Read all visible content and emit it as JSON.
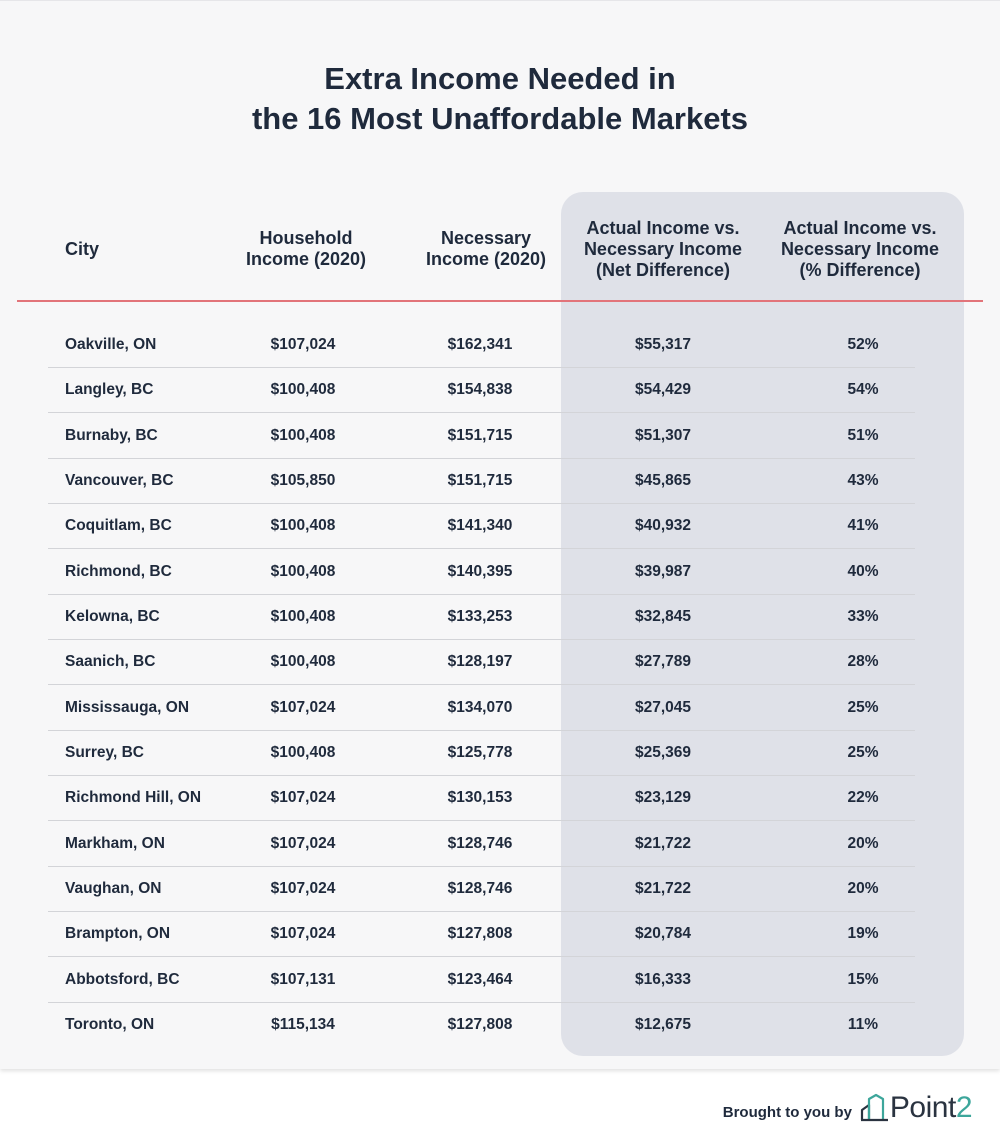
{
  "chart_data": {
    "type": "table",
    "title_line1": "Extra Income Needed in",
    "title_line2": "the 16 Most Unaffordable Markets",
    "columns": [
      {
        "lines": [
          "City"
        ]
      },
      {
        "lines": [
          "Household",
          "Income (2020)"
        ]
      },
      {
        "lines": [
          "Necessary",
          "Income (2020)"
        ]
      },
      {
        "lines": [
          "Actual Income vs.",
          "Necessary Income",
          "(Net Difference)"
        ]
      },
      {
        "lines": [
          "Actual Income vs.",
          "Necessary Income",
          "(% Difference)"
        ]
      }
    ],
    "rows": [
      {
        "city": "Oakville, ON",
        "household": "$107,024",
        "necessary": "$162,341",
        "net": "$55,317",
        "pct": "52%"
      },
      {
        "city": "Langley, BC",
        "household": "$100,408",
        "necessary": "$154,838",
        "net": "$54,429",
        "pct": "54%"
      },
      {
        "city": "Burnaby, BC",
        "household": "$100,408",
        "necessary": "$151,715",
        "net": "$51,307",
        "pct": "51%"
      },
      {
        "city": "Vancouver, BC",
        "household": "$105,850",
        "necessary": "$151,715",
        "net": "$45,865",
        "pct": "43%"
      },
      {
        "city": "Coquitlam, BC",
        "household": "$100,408",
        "necessary": "$141,340",
        "net": "$40,932",
        "pct": "41%"
      },
      {
        "city": "Richmond, BC",
        "household": "$100,408",
        "necessary": "$140,395",
        "net": "$39,987",
        "pct": "40%"
      },
      {
        "city": "Kelowna, BC",
        "household": "$100,408",
        "necessary": "$133,253",
        "net": "$32,845",
        "pct": "33%"
      },
      {
        "city": "Saanich, BC",
        "household": "$100,408",
        "necessary": "$128,197",
        "net": "$27,789",
        "pct": "28%"
      },
      {
        "city": "Mississauga, ON",
        "household": "$107,024",
        "necessary": "$134,070",
        "net": "$27,045",
        "pct": "25%"
      },
      {
        "city": "Surrey, BC",
        "household": "$100,408",
        "necessary": "$125,778",
        "net": "$25,369",
        "pct": "25%"
      },
      {
        "city": "Richmond Hill, ON",
        "household": "$107,024",
        "necessary": "$130,153",
        "net": "$23,129",
        "pct": "22%"
      },
      {
        "city": "Markham, ON",
        "household": "$107,024",
        "necessary": "$128,746",
        "net": "$21,722",
        "pct": "20%"
      },
      {
        "city": "Vaughan, ON",
        "household": "$107,024",
        "necessary": "$128,746",
        "net": "$21,722",
        "pct": "20%"
      },
      {
        "city": "Brampton, ON",
        "household": "$107,024",
        "necessary": "$127,808",
        "net": "$20,784",
        "pct": "19%"
      },
      {
        "city": "Abbotsford, BC",
        "household": "$107,131",
        "necessary": "$123,464",
        "net": "$16,333",
        "pct": "15%"
      },
      {
        "city": "Toronto, ON",
        "household": "$115,134",
        "necessary": "$127,808",
        "net": "$12,675",
        "pct": "11%"
      }
    ],
    "highlight_columns": [
      3,
      4
    ]
  },
  "colors": {
    "text": "#1f2a3c",
    "header_rule": "#e2747a",
    "highlight_bg": "#dfe1e8",
    "row_divider": "#d3d4d8",
    "logo_accent": "#3da69b"
  },
  "footer": {
    "brought_by": "Brought to you by",
    "logo_word": "Point",
    "logo_digit": "2",
    "logo_icon": "house-outline-icon"
  }
}
